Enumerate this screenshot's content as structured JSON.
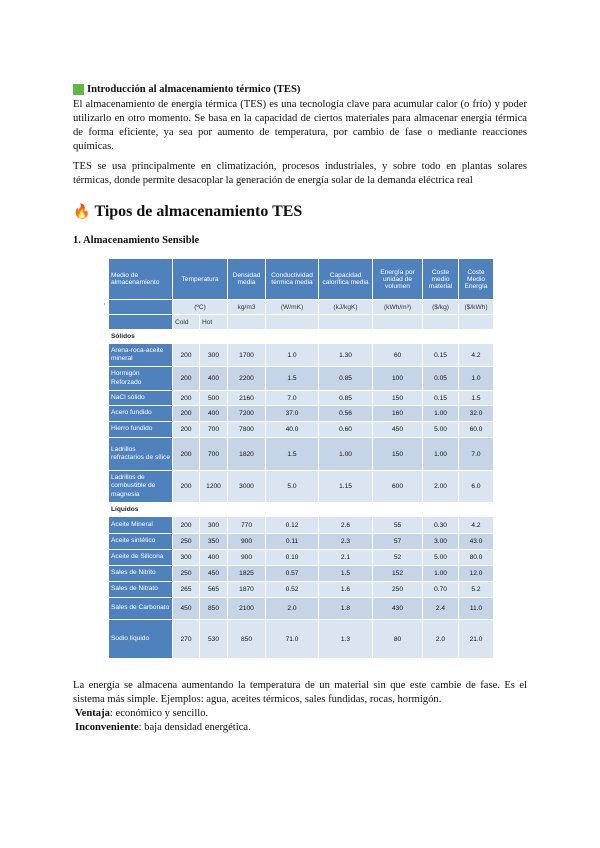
{
  "intro": {
    "icon": "green-square-icon",
    "title": "Introducción al almacenamiento térmico (TES)",
    "p1": "El almacenamiento de energía térmica (TES) es una tecnología clave para acumular calor (o frío) y poder utilizarlo en otro momento. Se basa en la capacidad de ciertos materiales para almacenar energía térmica de forma eficiente, ya sea por aumento de temperatura, por cambio de fase o mediante reacciones químicas.",
    "p2": "TES se usa principalmente en climatización, procesos industriales, y sobre todo en plantas solares térmicas, donde permite desacoplar la generación de energía solar de la demanda eléctrica real"
  },
  "types": {
    "icon": "fire-icon",
    "title": "Tipos de almacenamiento TES"
  },
  "sensible": {
    "title": "1. Almacenamiento Sensible",
    "table": {
      "headers": [
        "Medio de almacenamiento",
        "Temperatura",
        "Densidad media",
        "Conductividad térmica media",
        "Capacidad calorífica media",
        "Energía por unidad de volumen",
        "Coste medio material",
        "Coste Medio Energía"
      ],
      "units": [
        "(ºC)",
        "kg/m3",
        "(W/mK)",
        "(kJ/kgK)",
        "(kWh/m³)",
        "($/kg)",
        "($/kWh)"
      ],
      "temp_sub": [
        "Cold",
        "Hot"
      ],
      "sections": [
        {
          "label": "Sólidos",
          "rows": [
            [
              "Arena-roca-aceite mineral",
              "200",
              "300",
              "1700",
              "1.0",
              "1.30",
              "60",
              "0.15",
              "4.2"
            ],
            [
              "Hormigón Reforzado",
              "200",
              "400",
              "2200",
              "1.5",
              "0.85",
              "100",
              "0.05",
              "1.0"
            ],
            [
              "NaCl sólido",
              "200",
              "500",
              "2160",
              "7.0",
              "0.85",
              "150",
              "0.15",
              "1.5"
            ],
            [
              "Acero fundido",
              "200",
              "400",
              "7200",
              "37.0",
              "0.56",
              "160",
              "1.00",
              "32.0"
            ],
            [
              "Hierro fundido",
              "200",
              "700",
              "7800",
              "40.0",
              "0.60",
              "450",
              "5.00",
              "60.0"
            ],
            [
              "Ladrillos refractarios de sílice",
              "200",
              "700",
              "1820",
              "1.5",
              "1.00",
              "150",
              "1.00",
              "7.0"
            ],
            [
              "Ladrillos de combustible de magnesia",
              "200",
              "1200",
              "3000",
              "5.0",
              "1.15",
              "600",
              "2.00",
              "6.0"
            ]
          ]
        },
        {
          "label": "Líquidos",
          "rows": [
            [
              "Aceite Mineral",
              "200",
              "300",
              "770",
              "0.12",
              "2.6",
              "55",
              "0.30",
              "4.2"
            ],
            [
              "Aceite sintético",
              "250",
              "350",
              "900",
              "0.11",
              "2.3",
              "57",
              "3.00",
              "43.0"
            ],
            [
              "Aceite de Silicona",
              "300",
              "400",
              "900",
              "0.10",
              "2.1",
              "52",
              "5.00",
              "80.0"
            ],
            [
              "Sales de Nitrito",
              "250",
              "450",
              "1825",
              "0.57",
              "1.5",
              "152",
              "1.00",
              "12.0"
            ],
            [
              "Sales de Nitrato",
              "265",
              "565",
              "1870",
              "0.52",
              "1.6",
              "250",
              "0.70",
              "5.2"
            ],
            [
              "Sales de Carbonato",
              "450",
              "850",
              "2100",
              "2.0",
              "1.8",
              "430",
              "2.4",
              "11.0"
            ],
            [
              "Sodio líquido",
              "270",
              "530",
              "850",
              "71.0",
              "1.3",
              "80",
              "2.0",
              "21.0"
            ]
          ]
        }
      ]
    },
    "p": "La energía se almacena aumentando la temperatura de un material sin que este cambie de fase. Es el sistema más simple. Ejemplos: agua, aceites térmicos, sales fundidas, rocas, hormigón.",
    "pro_label": "Ventaja",
    "pro_text": ": económico y sencillo.",
    "con_label": "Inconveniente",
    "con_text": ": baja densidad energética."
  }
}
